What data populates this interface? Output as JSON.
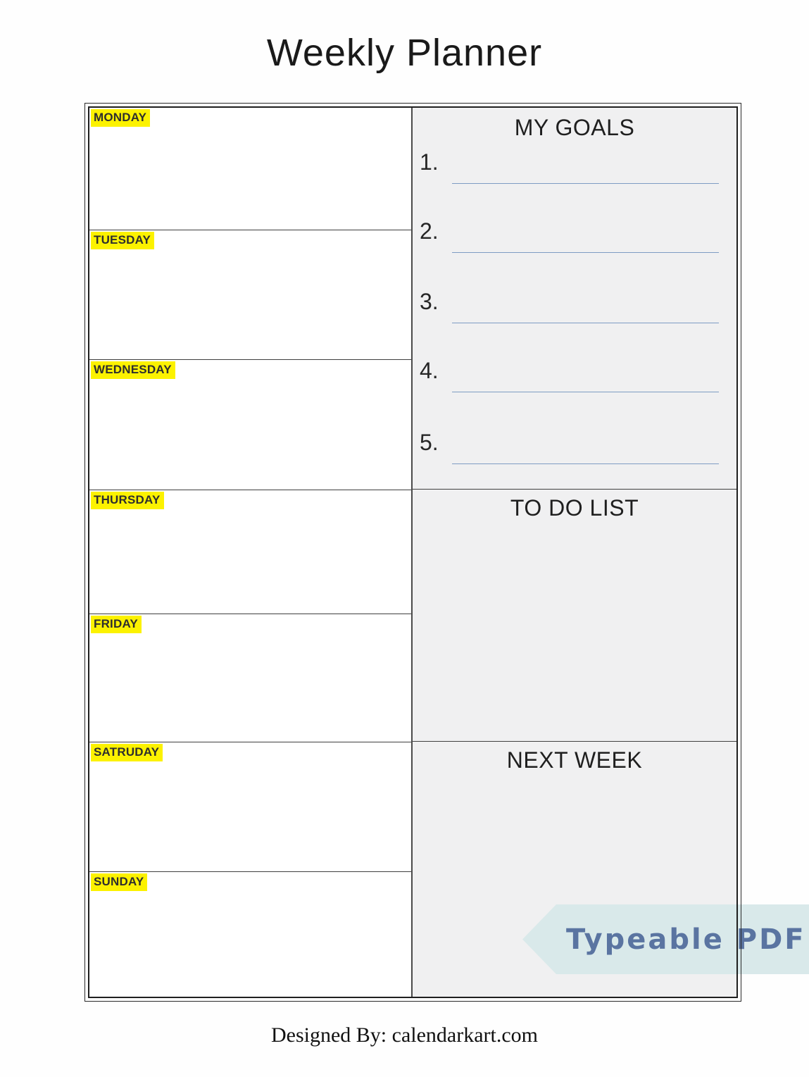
{
  "title": "Weekly Planner",
  "days": [
    {
      "label": "MONDAY"
    },
    {
      "label": "TUESDAY"
    },
    {
      "label": "WEDNESDAY"
    },
    {
      "label": "THURSDAY"
    },
    {
      "label": "FRIDAY"
    },
    {
      "label": "SATRUDAY"
    },
    {
      "label": "SUNDAY"
    }
  ],
  "sections": {
    "goals": {
      "heading": "MY GOALS",
      "items": [
        {
          "number": "1."
        },
        {
          "number": "2."
        },
        {
          "number": "3."
        },
        {
          "number": "4."
        },
        {
          "number": "5."
        }
      ]
    },
    "todo": {
      "heading": "TO DO LIST"
    },
    "next_week": {
      "heading": "NEXT WEEK"
    }
  },
  "banner": {
    "label": "Typeable PDF"
  },
  "footer": {
    "credit": "Designed By: calendarkart.com"
  },
  "colors": {
    "day_highlight": "#fcf200",
    "section_background": "#f0f0f1",
    "goal_underline": "#7e9cc3",
    "banner_background": "#d9e9ea",
    "banner_text": "#5a74a1",
    "border": "#1f1f1f"
  }
}
